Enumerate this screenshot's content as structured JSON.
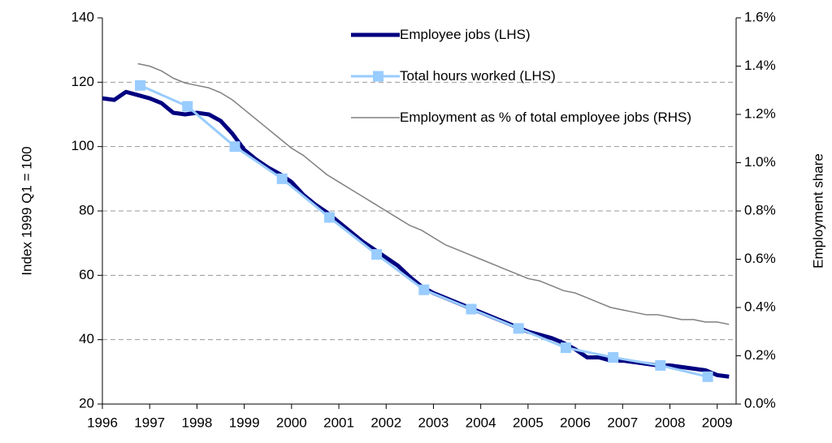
{
  "chart_data": {
    "type": "line",
    "y_label": "Index 1999 Q1 = 100",
    "y2_label": "Employment share",
    "xlim": [
      1996,
      2009.4
    ],
    "xticks": [
      1996,
      1997,
      1998,
      1999,
      2000,
      2001,
      2002,
      2003,
      2004,
      2005,
      2006,
      2007,
      2008,
      2009
    ],
    "ylim": [
      20,
      140
    ],
    "yticks": [
      20,
      40,
      60,
      80,
      100,
      120,
      140
    ],
    "y2lim": [
      0,
      1.6
    ],
    "y2ticks": [
      {
        "value": 0,
        "label": "0.0%"
      },
      {
        "value": 0.2,
        "label": "0.2%"
      },
      {
        "value": 0.4,
        "label": "0.4%"
      },
      {
        "value": 0.6,
        "label": "0.6%"
      },
      {
        "value": 0.8,
        "label": "0.8%"
      },
      {
        "value": 1.0,
        "label": "1.0%"
      },
      {
        "value": 1.2,
        "label": "1.2%"
      },
      {
        "value": 1.4,
        "label": "1.4%"
      },
      {
        "value": 1.6,
        "label": "1.6%"
      }
    ],
    "grid": true,
    "series": [
      {
        "name": "Employee jobs (LHS)",
        "color": "#000080",
        "width": 5,
        "marker": false,
        "x": [
          1996,
          1996.25,
          1996.5,
          1996.75,
          1997,
          1997.25,
          1997.5,
          1997.75,
          1998,
          1998.25,
          1998.5,
          1998.75,
          1999,
          1999.25,
          1999.5,
          1999.75,
          2000,
          2000.25,
          2000.5,
          2000.75,
          2001,
          2001.25,
          2001.5,
          2001.75,
          2002,
          2002.25,
          2002.5,
          2002.75,
          2003,
          2003.25,
          2003.5,
          2003.75,
          2004,
          2004.25,
          2004.5,
          2004.75,
          2005,
          2005.25,
          2005.5,
          2005.75,
          2006,
          2006.25,
          2006.5,
          2006.75,
          2007,
          2007.25,
          2007.5,
          2007.75,
          2008,
          2008.25,
          2008.5,
          2008.75,
          2009,
          2009.25
        ],
        "values": [
          115,
          114.5,
          117,
          116,
          115,
          113.5,
          110.5,
          110,
          110.5,
          110,
          108,
          104,
          99,
          96,
          93.5,
          91.5,
          89,
          85,
          82,
          79.5,
          76.5,
          73.5,
          70.5,
          68,
          65.5,
          63,
          59.5,
          56.5,
          54.5,
          53,
          51.5,
          50,
          48.5,
          47,
          45.5,
          44,
          42.5,
          41.5,
          40.5,
          39,
          37,
          34.5,
          34.5,
          33.5,
          33.5,
          33,
          32.5,
          32,
          32,
          31.5,
          31,
          30.5,
          29,
          28.5
        ]
      },
      {
        "name": "Total hours worked (LHS)",
        "color": "#99ccff",
        "width": 3,
        "marker": true,
        "x": [
          1996.8,
          1997.8,
          1998.8,
          1999.8,
          2000.8,
          2001.8,
          2002.8,
          2003.8,
          2004.8,
          2005.8,
          2006.8,
          2007.8,
          2008.8
        ],
        "values": [
          119,
          112.5,
          100,
          90,
          78,
          66.5,
          55.5,
          49.5,
          43.5,
          37.5,
          34.5,
          32,
          28.5
        ]
      },
      {
        "name": "Employment as % of total employee jobs (RHS)",
        "color": "#808080",
        "width": 1.5,
        "marker": false,
        "axis": "y2",
        "x": [
          1996.75,
          1997,
          1997.25,
          1997.5,
          1997.75,
          1998,
          1998.25,
          1998.5,
          1998.75,
          1999,
          1999.25,
          1999.5,
          1999.75,
          2000,
          2000.25,
          2000.5,
          2000.75,
          2001,
          2001.25,
          2001.5,
          2001.75,
          2002,
          2002.25,
          2002.5,
          2002.75,
          2003,
          2003.25,
          2003.5,
          2003.75,
          2004,
          2004.25,
          2004.5,
          2004.75,
          2005,
          2005.25,
          2005.5,
          2005.75,
          2006,
          2006.25,
          2006.5,
          2006.75,
          2007,
          2007.25,
          2007.5,
          2007.75,
          2008,
          2008.25,
          2008.5,
          2008.75,
          2009,
          2009.25
        ],
        "values": [
          1.41,
          1.4,
          1.38,
          1.35,
          1.33,
          1.32,
          1.31,
          1.29,
          1.26,
          1.22,
          1.18,
          1.14,
          1.1,
          1.06,
          1.03,
          0.99,
          0.95,
          0.92,
          0.89,
          0.86,
          0.83,
          0.8,
          0.77,
          0.74,
          0.72,
          0.69,
          0.66,
          0.64,
          0.62,
          0.6,
          0.58,
          0.56,
          0.54,
          0.52,
          0.51,
          0.49,
          0.47,
          0.46,
          0.44,
          0.42,
          0.4,
          0.39,
          0.38,
          0.37,
          0.37,
          0.36,
          0.35,
          0.35,
          0.34,
          0.34,
          0.33
        ]
      }
    ]
  }
}
